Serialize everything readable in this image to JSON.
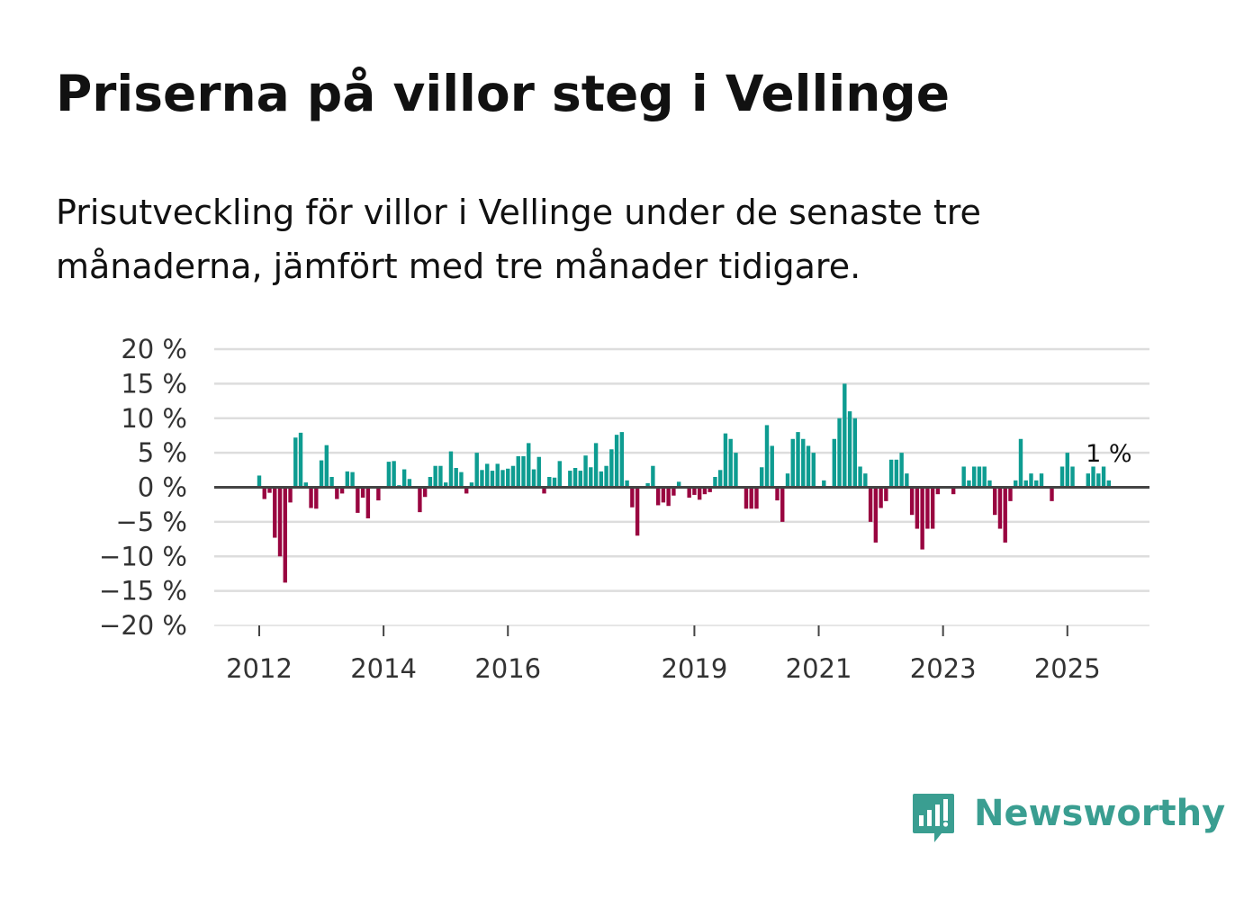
{
  "title": "Priserna på villor steg i Vellinge",
  "subtitle": "Prisutveckling för villor i Vellinge under de senaste tre månaderna, jämfört med tre månader tidigare.",
  "brand": {
    "name": "Newsworthy",
    "icon": "bar-chart-speech-bubble-icon"
  },
  "colors": {
    "positive": "#0e9c91",
    "negative": "#990540",
    "zero_line": "#444444",
    "grid": "#dddddd",
    "brand": "#3a9e91"
  },
  "chart_data": {
    "type": "bar",
    "title": "Priserna på villor steg i Vellinge",
    "xlabel": "",
    "ylabel": "",
    "ylim": [
      -20,
      20
    ],
    "y_ticks": [
      20,
      15,
      10,
      5,
      0,
      -5,
      -10,
      -15,
      -20
    ],
    "y_tick_labels": [
      "20 %",
      "15 %",
      "10 %",
      "5 %",
      "0 %",
      "−5 %",
      "−10 %",
      "−15 %",
      "−20 %"
    ],
    "x_ticks": [
      2012,
      2014,
      2016,
      2019,
      2021,
      2023,
      2025
    ],
    "x_tick_labels": [
      "2012",
      "2014",
      "2016",
      "2019",
      "2021",
      "2023",
      "2025"
    ],
    "start": "2012-01",
    "annotation": {
      "text": "1 %",
      "target": "last"
    },
    "values": [
      1.7,
      -1.7,
      -0.8,
      -7.3,
      -10.0,
      -13.8,
      -2.2,
      7.2,
      7.9,
      0.7,
      -3.0,
      -3.1,
      3.9,
      6.1,
      1.5,
      -1.7,
      -0.9,
      2.3,
      2.2,
      -3.7,
      -1.5,
      -4.5,
      -0.1,
      -1.9,
      -0.1,
      3.7,
      3.8,
      0.3,
      2.6,
      1.2,
      -0.2,
      -3.6,
      -1.4,
      1.5,
      3.1,
      3.1,
      0.7,
      5.2,
      2.8,
      2.2,
      -0.9,
      0.7,
      5.0,
      2.5,
      3.4,
      2.4,
      3.4,
      2.5,
      2.7,
      3.1,
      4.5,
      4.5,
      6.4,
      2.6,
      4.4,
      -0.9,
      1.5,
      1.4,
      3.8,
      -0.2,
      2.4,
      2.8,
      2.4,
      4.6,
      2.9,
      6.4,
      2.3,
      3.1,
      5.5,
      7.6,
      8.0,
      1.0,
      -2.9,
      -7.0,
      -0.2,
      0.6,
      3.1,
      -2.6,
      -2.2,
      -2.7,
      -1.2,
      0.8,
      -0.1,
      -1.5,
      -1.1,
      -1.8,
      -1.0,
      -0.7,
      1.5,
      2.5,
      7.8,
      7.0,
      5.0,
      -0.2,
      -3.1,
      -3.1,
      -3.1,
      2.9,
      9.0,
      6.0,
      -1.9,
      -5.0,
      2.0,
      7.0,
      8.0,
      7.0,
      6.0,
      5.0,
      -0.2,
      1.0,
      -0.1,
      7.0,
      10.0,
      15.0,
      11.0,
      10.0,
      3.0,
      2.0,
      -5.0,
      -8.0,
      -3.0,
      -2.0,
      4.0,
      4.0,
      5.0,
      2.0,
      -4.0,
      -6.0,
      -9.0,
      -6.0,
      -6.0,
      -1.0,
      -0.1,
      -0.2,
      -1.0,
      -0.1,
      3.0,
      1.0,
      3.0,
      3.0,
      3.0,
      1.0,
      -4.0,
      -6.0,
      -8.0,
      -2.0,
      1.0,
      7.0,
      1.0,
      2.0,
      1.0,
      2.0,
      -0.1,
      -2.0,
      -0.1,
      3.0,
      5.0,
      3.0,
      -0.1,
      -0.1,
      2.0,
      3.0,
      2.0,
      3.0,
      1.0
    ]
  }
}
